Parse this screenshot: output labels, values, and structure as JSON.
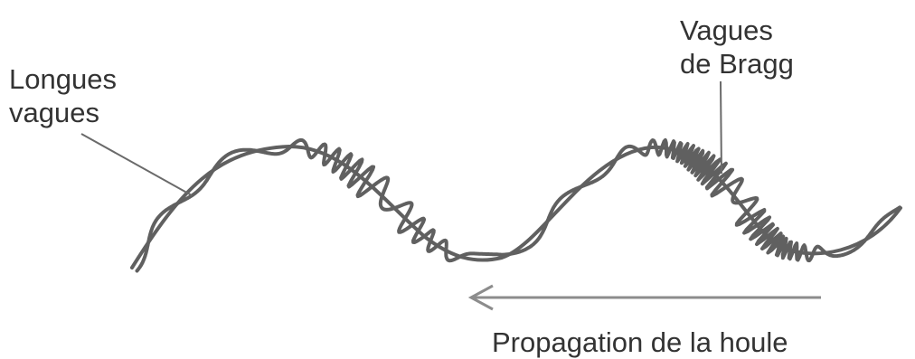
{
  "labels": {
    "long_waves": [
      "Longues",
      "vagues"
    ],
    "bragg_waves": [
      "Vagues",
      "de Bragg"
    ],
    "propagation": "Propagation de la houle"
  },
  "colors": {
    "wave": "#606060",
    "leader": "#6a6a6a",
    "arrow": "#8c8c8c",
    "text": "#333333"
  }
}
